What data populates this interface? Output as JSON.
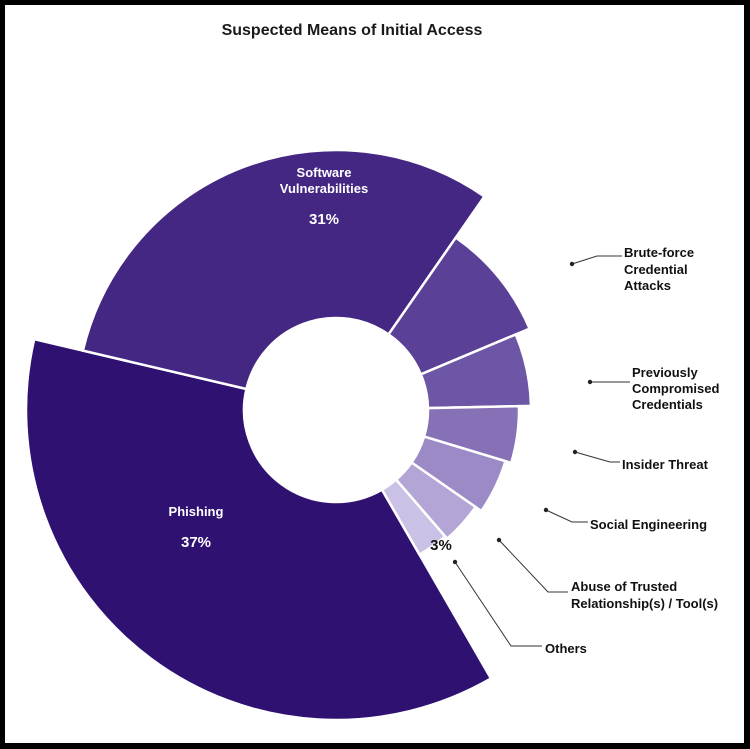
{
  "chart_data": {
    "type": "pie",
    "title": "Suspected Means of Initial Access",
    "categories": [
      "Phishing",
      "Software Vulnerabilities",
      "Brute-force Credential Attacks",
      "Previously Compromised Credentials",
      "Insider Threat",
      "Social Engineering",
      "Abuse of Trusted Relationship(s) / Tool(s)",
      "Others"
    ],
    "values": [
      37,
      31,
      9,
      6,
      5,
      5,
      4,
      3
    ],
    "value_labels": [
      "37%",
      "31%",
      "9%",
      "6%",
      "5%",
      "5%",
      "4%",
      "3%"
    ],
    "colors": [
      "#2e1170",
      "#432783",
      "#5a4096",
      "#6e56a6",
      "#8670b6",
      "#9c8ac6",
      "#b3a5d6",
      "#cbc1e6"
    ],
    "inside_names": {
      "Phishing": [
        "Phishing"
      ],
      "Software Vulnerabilities": [
        "Software",
        "Vulnerabilities"
      ]
    },
    "outside_names": {
      "Brute-force Credential Attacks": [
        "Brute-force",
        "Credential",
        "Attacks"
      ],
      "Previously Compromised Credentials": [
        "Previously",
        "Compromised",
        "Credentials"
      ],
      "Insider Threat": [
        "Insider Threat"
      ],
      "Social Engineering": [
        "Social Engineering"
      ],
      "Abuse of Trusted Relationship(s) / Tool(s)": [
        "Abuse of Trusted",
        "Relationship(s) / Tool(s)"
      ],
      "Others": [
        "Others"
      ]
    },
    "legend": "none",
    "grid": false
  }
}
